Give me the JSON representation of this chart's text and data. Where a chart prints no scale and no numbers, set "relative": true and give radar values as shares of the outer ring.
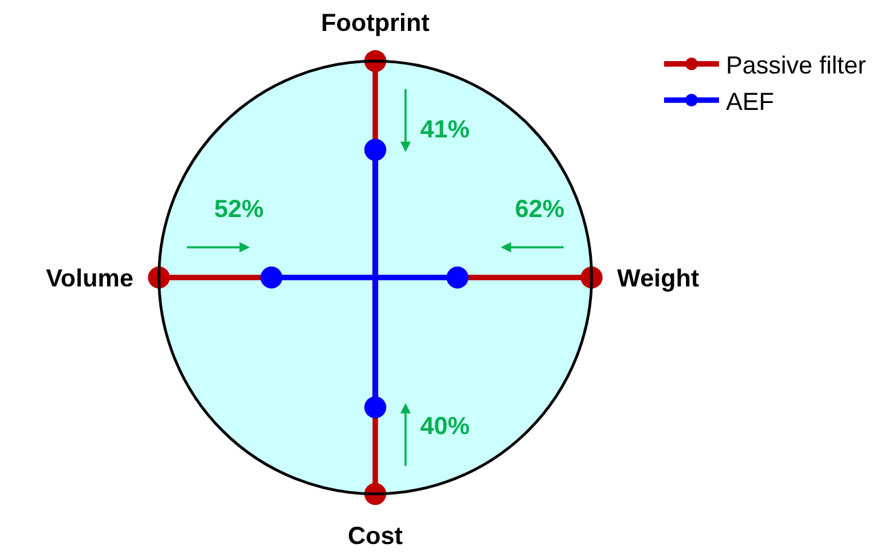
{
  "chart_data": {
    "type": "radar",
    "relative": true,
    "categories": [
      "Footprint",
      "Weight",
      "Cost",
      "Volume"
    ],
    "series": [
      {
        "name": "Passive filter",
        "color": "#c00000",
        "values": [
          1,
          1,
          1,
          1
        ]
      },
      {
        "name": "AEF",
        "color": "#0000ff",
        "values": [
          0.59,
          0.38,
          0.6,
          0.48
        ]
      }
    ],
    "annotations": [
      "41%",
      "62%",
      "40%",
      "52%"
    ],
    "legend": "top right",
    "marker": "circle",
    "line_style": "solid",
    "grid": false
  }
}
